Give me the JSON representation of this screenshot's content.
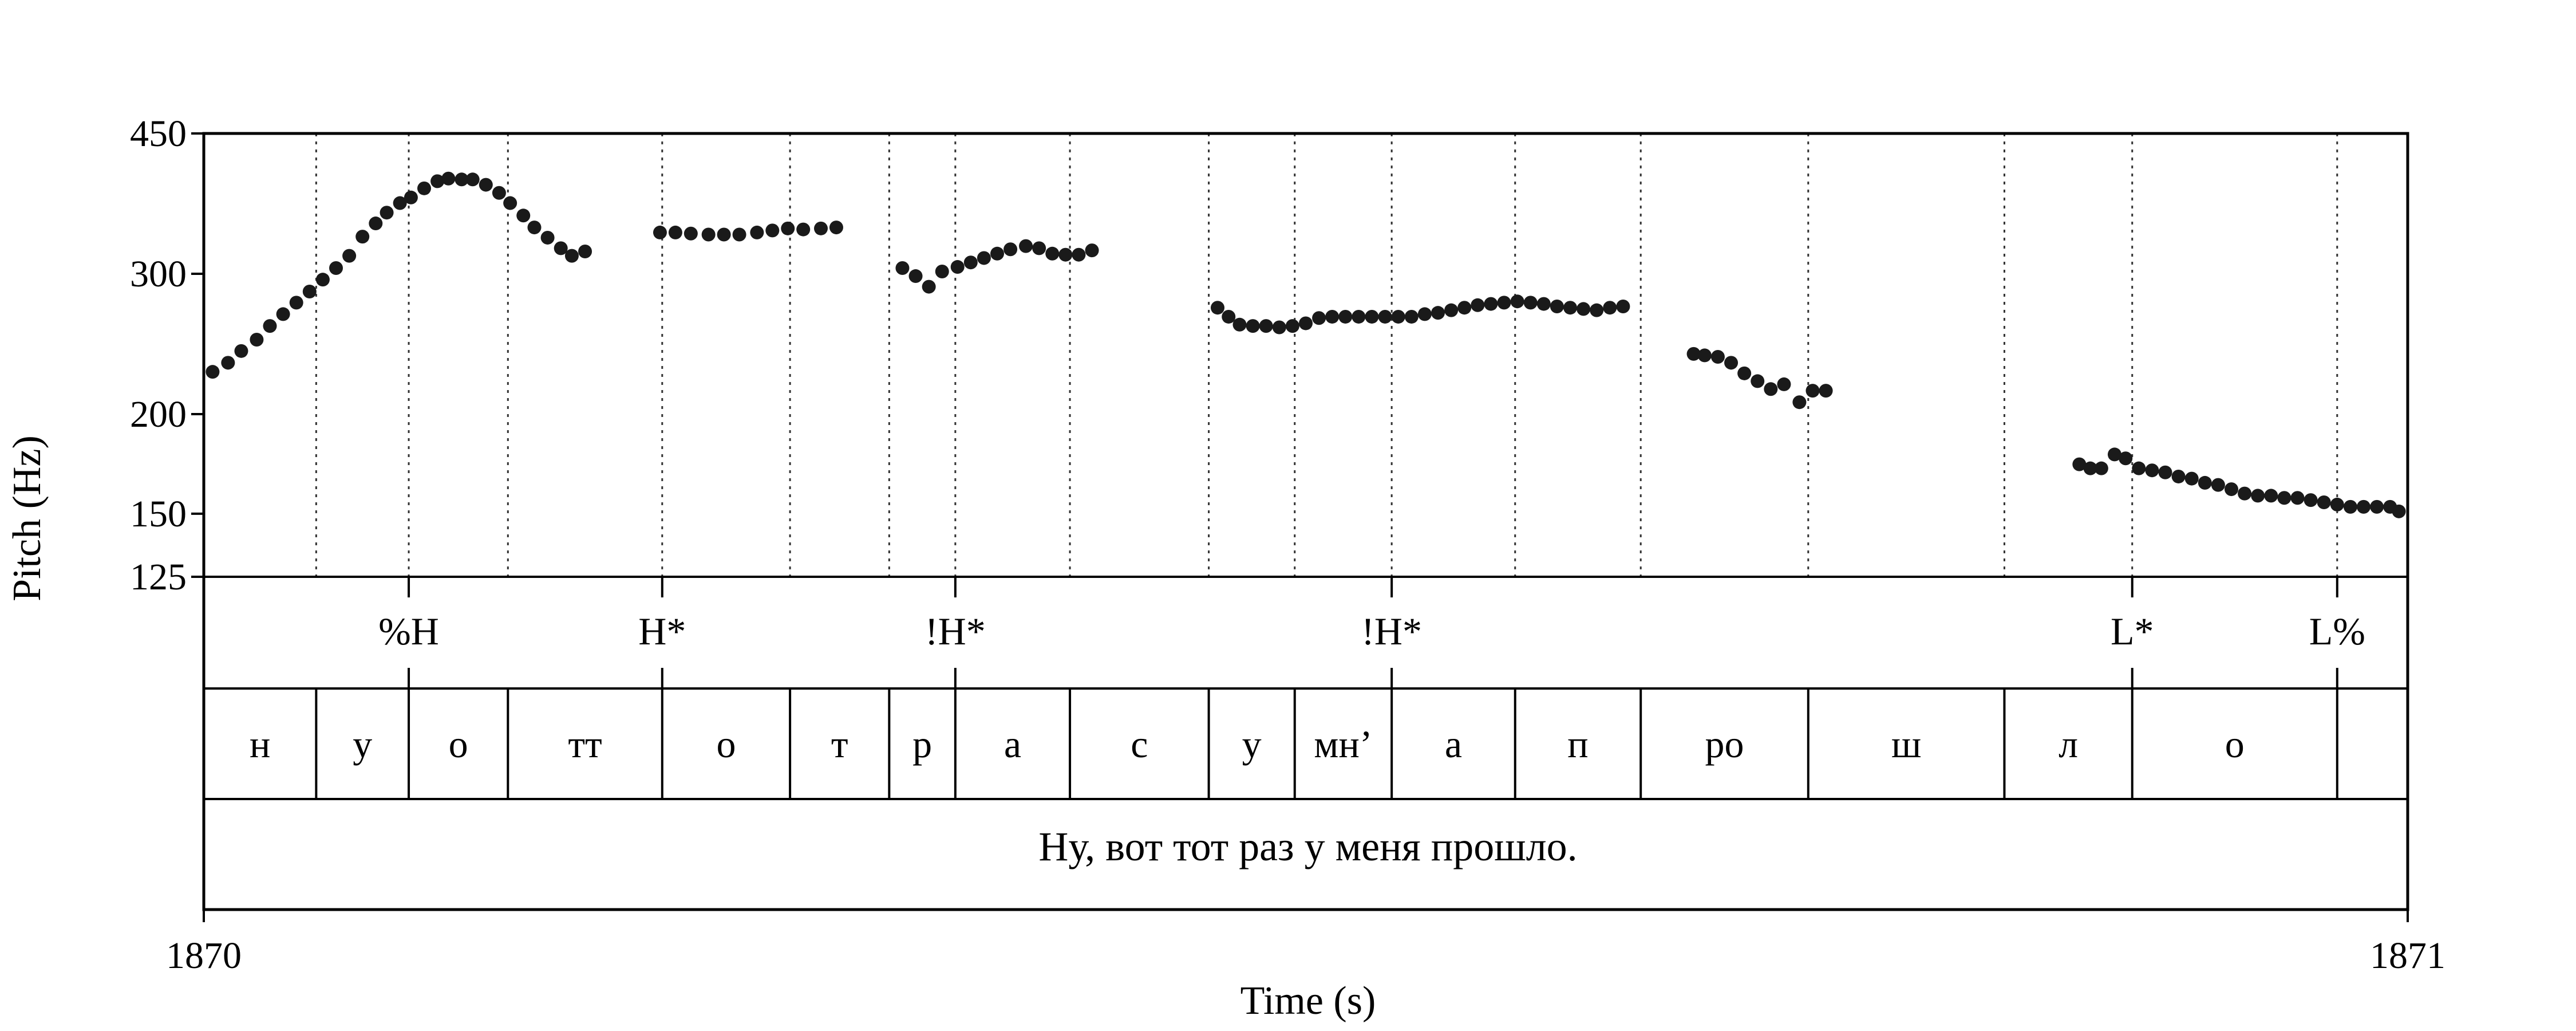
{
  "chart_data": {
    "type": "scatter",
    "title": "",
    "xlabel": "Time (s)",
    "ylabel": "Pitch (Hz)",
    "xlim": [
      1870,
      1871
    ],
    "ylim": [
      125,
      450
    ],
    "y_scale": "log",
    "x_tick_labels": [
      "1870",
      "1871"
    ],
    "y_ticks": [
      125,
      150,
      200,
      300,
      450
    ],
    "y_tick_labels": [
      "125",
      "150",
      "200",
      "300",
      "450"
    ],
    "grid": "vertical dotted lines at segment boundaries",
    "colors": {
      "points": "#1a1a1a",
      "frame": "#000000",
      "grid": "#333333"
    },
    "pitch_track": [
      [
        1870.004,
        226
      ],
      [
        1870.011,
        232
      ],
      [
        1870.017,
        240
      ],
      [
        1870.024,
        248
      ],
      [
        1870.03,
        258
      ],
      [
        1870.036,
        267
      ],
      [
        1870.042,
        276
      ],
      [
        1870.048,
        285
      ],
      [
        1870.054,
        295
      ],
      [
        1870.06,
        305
      ],
      [
        1870.066,
        316
      ],
      [
        1870.072,
        334
      ],
      [
        1870.078,
        347
      ],
      [
        1870.083,
        358
      ],
      [
        1870.089,
        368
      ],
      [
        1870.094,
        374
      ],
      [
        1870.1,
        384
      ],
      [
        1870.106,
        392
      ],
      [
        1870.111,
        395
      ],
      [
        1870.117,
        394
      ],
      [
        1870.122,
        394
      ],
      [
        1870.128,
        388
      ],
      [
        1870.134,
        379
      ],
      [
        1870.139,
        368
      ],
      [
        1870.145,
        355
      ],
      [
        1870.15,
        343
      ],
      [
        1870.156,
        333
      ],
      [
        1870.162,
        323
      ],
      [
        1870.167,
        316
      ],
      [
        1870.173,
        320
      ],
      [
        1870.207,
        338
      ],
      [
        1870.214,
        338
      ],
      [
        1870.221,
        337
      ],
      [
        1870.229,
        336
      ],
      [
        1870.236,
        336
      ],
      [
        1870.243,
        336
      ],
      [
        1870.251,
        338
      ],
      [
        1870.258,
        340
      ],
      [
        1870.265,
        342
      ],
      [
        1870.272,
        341
      ],
      [
        1870.28,
        342
      ],
      [
        1870.287,
        343
      ],
      [
        1870.317,
        305
      ],
      [
        1870.323,
        298
      ],
      [
        1870.329,
        289
      ],
      [
        1870.335,
        302
      ],
      [
        1870.342,
        306
      ],
      [
        1870.348,
        310
      ],
      [
        1870.354,
        314
      ],
      [
        1870.36,
        318
      ],
      [
        1870.366,
        322
      ],
      [
        1870.373,
        325
      ],
      [
        1870.379,
        323
      ],
      [
        1870.385,
        318
      ],
      [
        1870.391,
        317
      ],
      [
        1870.397,
        317
      ],
      [
        1870.403,
        321
      ],
      [
        1870.46,
        272
      ],
      [
        1870.465,
        265
      ],
      [
        1870.47,
        259
      ],
      [
        1870.476,
        258
      ],
      [
        1870.482,
        258
      ],
      [
        1870.488,
        257
      ],
      [
        1870.494,
        258
      ],
      [
        1870.5,
        260
      ],
      [
        1870.506,
        264
      ],
      [
        1870.512,
        265
      ],
      [
        1870.518,
        265
      ],
      [
        1870.524,
        265
      ],
      [
        1870.53,
        265
      ],
      [
        1870.536,
        265
      ],
      [
        1870.542,
        265
      ],
      [
        1870.548,
        265
      ],
      [
        1870.554,
        267
      ],
      [
        1870.56,
        268
      ],
      [
        1870.566,
        270
      ],
      [
        1870.572,
        272
      ],
      [
        1870.578,
        274
      ],
      [
        1870.584,
        275
      ],
      [
        1870.59,
        276
      ],
      [
        1870.596,
        277
      ],
      [
        1870.602,
        276
      ],
      [
        1870.608,
        275
      ],
      [
        1870.614,
        273
      ],
      [
        1870.62,
        272
      ],
      [
        1870.626,
        271
      ],
      [
        1870.632,
        270
      ],
      [
        1870.638,
        272
      ],
      [
        1870.644,
        273
      ],
      [
        1870.676,
        238
      ],
      [
        1870.681,
        237
      ],
      [
        1870.687,
        236
      ],
      [
        1870.693,
        232
      ],
      [
        1870.699,
        225
      ],
      [
        1870.705,
        220
      ],
      [
        1870.711,
        215
      ],
      [
        1870.717,
        218
      ],
      [
        1870.724,
        207
      ],
      [
        1870.73,
        214
      ],
      [
        1870.736,
        214
      ],
      [
        1870.851,
        173
      ],
      [
        1870.856,
        171
      ],
      [
        1870.861,
        171
      ],
      [
        1870.867,
        178
      ],
      [
        1870.872,
        176
      ],
      [
        1870.878,
        171
      ],
      [
        1870.884,
        170
      ],
      [
        1870.89,
        169
      ],
      [
        1870.896,
        167
      ],
      [
        1870.902,
        166
      ],
      [
        1870.908,
        164
      ],
      [
        1870.914,
        163
      ],
      [
        1870.92,
        161
      ],
      [
        1870.926,
        159
      ],
      [
        1870.932,
        158
      ],
      [
        1870.938,
        158
      ],
      [
        1870.944,
        157
      ],
      [
        1870.95,
        157
      ],
      [
        1870.956,
        156
      ],
      [
        1870.962,
        155
      ],
      [
        1870.968,
        154
      ],
      [
        1870.974,
        153
      ],
      [
        1870.98,
        153
      ],
      [
        1870.986,
        153
      ],
      [
        1870.992,
        153
      ],
      [
        1870.996,
        151
      ]
    ],
    "tones": [
      {
        "label": "%H",
        "t": 1870.093
      },
      {
        "label": "H*",
        "t": 1870.208
      },
      {
        "label": "!H*",
        "t": 1870.341
      },
      {
        "label": "!H*",
        "t": 1870.539
      },
      {
        "label": "L*",
        "t": 1870.875
      },
      {
        "label": "L%",
        "t": 1870.968
      }
    ],
    "segments": [
      {
        "label": "н",
        "start": 1870.0,
        "end": 1870.051
      },
      {
        "label": "у",
        "start": 1870.051,
        "end": 1870.093
      },
      {
        "label": "о",
        "start": 1870.093,
        "end": 1870.138
      },
      {
        "label": "тт",
        "start": 1870.138,
        "end": 1870.208
      },
      {
        "label": "о",
        "start": 1870.208,
        "end": 1870.266
      },
      {
        "label": "т",
        "start": 1870.266,
        "end": 1870.311
      },
      {
        "label": "р",
        "start": 1870.311,
        "end": 1870.341
      },
      {
        "label": "а",
        "start": 1870.341,
        "end": 1870.393
      },
      {
        "label": "с",
        "start": 1870.393,
        "end": 1870.456
      },
      {
        "label": "у",
        "start": 1870.456,
        "end": 1870.495
      },
      {
        "label": "мн’",
        "start": 1870.495,
        "end": 1870.539
      },
      {
        "label": "а",
        "start": 1870.539,
        "end": 1870.595
      },
      {
        "label": "п",
        "start": 1870.595,
        "end": 1870.652
      },
      {
        "label": "ро",
        "start": 1870.652,
        "end": 1870.728
      },
      {
        "label": "ш",
        "start": 1870.728,
        "end": 1870.817
      },
      {
        "label": "л",
        "start": 1870.817,
        "end": 1870.875
      },
      {
        "label": "о",
        "start": 1870.875,
        "end": 1870.968
      },
      {
        "label": "",
        "start": 1870.968,
        "end": 1871.0
      }
    ],
    "sentence": "Ну, вот тот раз у меня прошло."
  }
}
